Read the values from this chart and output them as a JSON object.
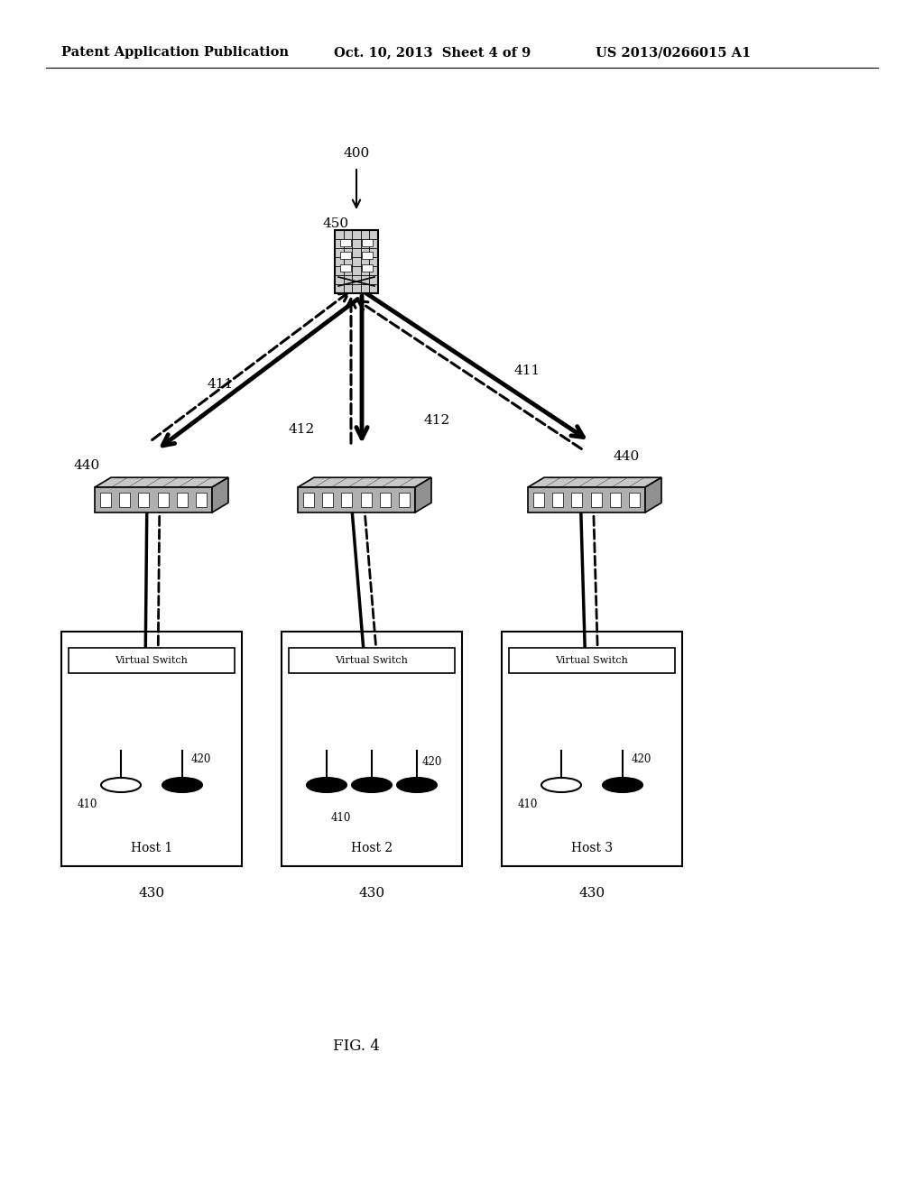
{
  "title": "FIG. 4",
  "header_left": "Patent Application Publication",
  "header_mid": "Oct. 10, 2013  Sheet 4 of 9",
  "header_right": "US 2013/0266015 A1",
  "bg_color": "#ffffff",
  "label_400": "400",
  "label_450": "450",
  "label_411_left": "411",
  "label_411_right": "411",
  "label_412_left": "412",
  "label_412_right": "412",
  "label_440_left": "440",
  "label_440_right": "440",
  "label_410": "410",
  "label_420": "420",
  "label_430": "430",
  "hosts": [
    "Host 1",
    "Host 2",
    "Host 3"
  ],
  "virtual_switch_label": "Virtual Switch",
  "fig4_label": "FIG. 4"
}
